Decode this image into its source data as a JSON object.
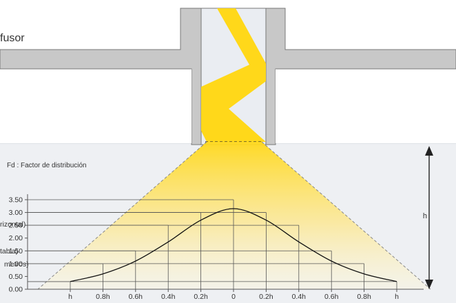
{
  "labels": {
    "difusor": "fusor",
    "factor": "Fd : Factor de distribución",
    "height": "h",
    "left_fragment_1": "rizontal)",
    "left_fragment_2": "tabla)",
    "left_fragment_3": "metros)"
  },
  "chart_data": {
    "type": "line",
    "title": "",
    "x_ticks": [
      "h",
      "0.8h",
      "0.6h",
      "0.4h",
      "0.2h",
      "0",
      "0.2h",
      "0.4h",
      "0.6h",
      "0.8h",
      "h"
    ],
    "y_ticks": [
      "0.00",
      "0.50",
      "1.00",
      "1.50",
      "2.00",
      "2.50",
      "3.00",
      "3.50"
    ],
    "ylim": [
      0,
      3.5
    ],
    "step_values": [
      0.3,
      1.0,
      1.5,
      2.5,
      3.0,
      3.5,
      3.0,
      2.5,
      1.5,
      1.0,
      0.3
    ],
    "curve": {
      "x": [
        -1.0,
        -0.8,
        -0.6,
        -0.4,
        -0.2,
        0.0,
        0.2,
        0.4,
        0.6,
        0.8,
        1.0
      ],
      "y": [
        0.3,
        0.6,
        1.1,
        1.85,
        2.7,
        3.15,
        2.7,
        1.85,
        1.1,
        0.6,
        0.3
      ]
    }
  },
  "colors": {
    "wall": "#c8c8c8",
    "light": "#ffd81a",
    "shaft": "#eaedf2",
    "floor_band": "#eef0f3",
    "line": "#555555"
  }
}
